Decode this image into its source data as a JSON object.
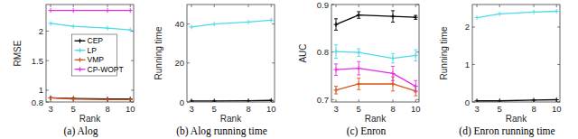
{
  "chart_data": [
    {
      "type": "line",
      "title": "(a) Alog",
      "x_label": "Rank",
      "y_label": "RMSE",
      "x": [
        3,
        5,
        8,
        10
      ],
      "xlim": [
        2.6,
        10.3
      ],
      "xticks": [
        3,
        5,
        8,
        10
      ],
      "ylim": [
        0.8,
        2.45
      ],
      "yticks": [
        0.8,
        1,
        1.5,
        2
      ],
      "legend": "center",
      "marker": "plus",
      "series": [
        {
          "name": "CEP",
          "color": "#000000",
          "values": [
            0.87,
            0.86,
            0.85,
            0.85
          ]
        },
        {
          "name": "LP",
          "color": "#4dd9e8",
          "values": [
            2.13,
            2.08,
            2.05,
            2.02
          ]
        },
        {
          "name": "VMP",
          "color": "#d95319",
          "values": [
            0.87,
            0.85,
            0.84,
            0.84
          ]
        },
        {
          "name": "CP-WOPT",
          "color": "#e52de5",
          "values": [
            2.35,
            2.35,
            2.35,
            2.35
          ]
        }
      ]
    },
    {
      "type": "line",
      "title": "(b) Alog running time",
      "x_label": "Rank",
      "y_label": "Running time",
      "x": [
        3,
        5,
        8,
        10
      ],
      "xlim": [
        2.6,
        10.3
      ],
      "xticks": [
        3,
        5,
        8,
        10
      ],
      "ylim": [
        0,
        50
      ],
      "yticks": [
        0,
        20,
        40
      ],
      "marker": "plus",
      "series": [
        {
          "name": "CEP",
          "color": "#000000",
          "values": [
            0.5,
            0.5,
            0.6,
            0.8
          ]
        },
        {
          "name": "LP",
          "color": "#4dd9e8",
          "values": [
            38.5,
            40,
            41,
            42
          ]
        }
      ]
    },
    {
      "type": "line",
      "title": "(c) Enron",
      "x_label": "Rank",
      "y_label": "AUC",
      "x": [
        3,
        5,
        8,
        10
      ],
      "xlim": [
        2.6,
        10.3
      ],
      "xticks": [
        3,
        5,
        8,
        10
      ],
      "ylim": [
        0.695,
        0.9
      ],
      "yticks": [
        0.7,
        0.8,
        0.9
      ],
      "marker": "plus",
      "series": [
        {
          "name": "CEP",
          "color": "#000000",
          "values": [
            0.858,
            0.878,
            0.875,
            0.873
          ],
          "errors": [
            0.012,
            0.007,
            0.012,
            0.004
          ]
        },
        {
          "name": "LP",
          "color": "#4dd9e8",
          "values": [
            0.801,
            0.799,
            0.787,
            0.793
          ],
          "errors": [
            0.014,
            0.008,
            0.01,
            0.012
          ]
        },
        {
          "name": "VMP",
          "color": "#d95319",
          "values": [
            0.72,
            0.733,
            0.733,
            0.718
          ],
          "errors": [
            0.008,
            0.012,
            0.015,
            0.01
          ]
        },
        {
          "name": "CP-WOPT",
          "color": "#e52de5",
          "values": [
            0.763,
            0.766,
            0.755,
            0.728
          ],
          "errors": [
            0.012,
            0.014,
            0.015,
            0.012
          ]
        }
      ]
    },
    {
      "type": "line",
      "title": "(d) Enron running time",
      "x_label": "Rank",
      "y_label": "Running time",
      "x": [
        3,
        5,
        8,
        10
      ],
      "xlim": [
        2.6,
        10.3
      ],
      "xticks": [
        3,
        5,
        8,
        10
      ],
      "ylim": [
        0,
        2.6
      ],
      "yticks": [
        0,
        1,
        2
      ],
      "marker": "plus",
      "series": [
        {
          "name": "CEP",
          "color": "#000000",
          "values": [
            0.03,
            0.03,
            0.05,
            0.06
          ]
        },
        {
          "name": "LP",
          "color": "#4dd9e8",
          "values": [
            2.25,
            2.35,
            2.4,
            2.42
          ]
        }
      ]
    }
  ]
}
